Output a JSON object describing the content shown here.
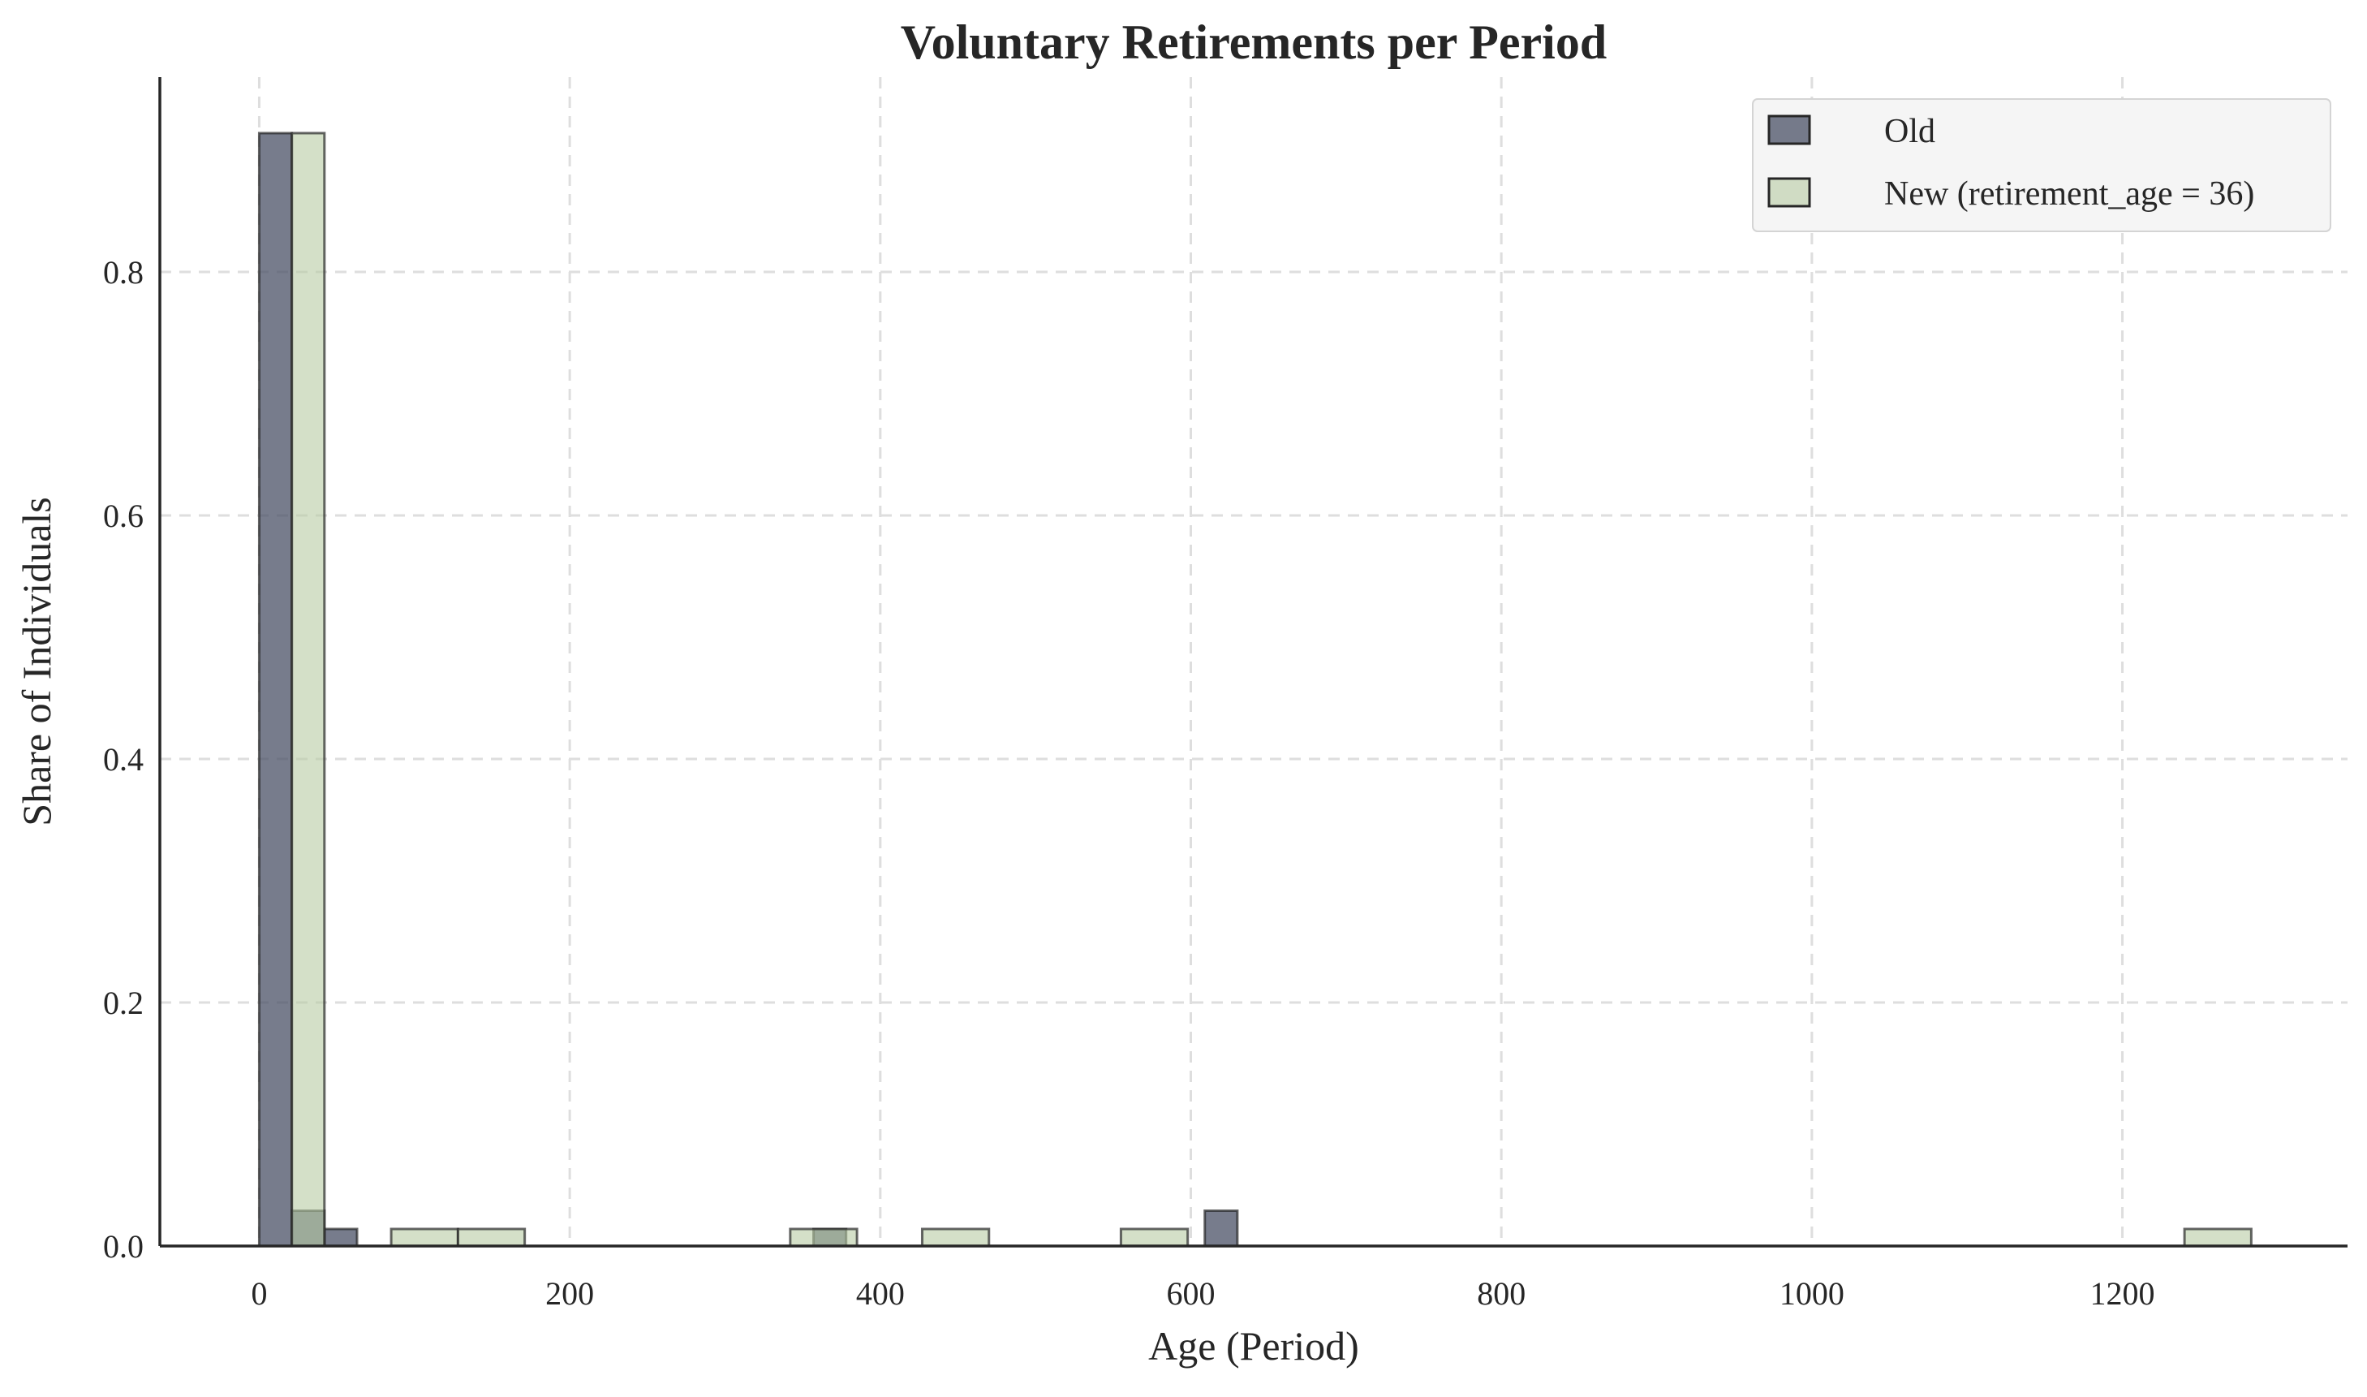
{
  "chart_data": {
    "type": "bar",
    "title": "Voluntary Retirements per Period",
    "xlabel": "Age (Period)",
    "ylabel": "Share of Individuals",
    "xlim": [
      -64,
      1345
    ],
    "ylim": [
      0,
      0.96
    ],
    "xticks": [
      0,
      200,
      400,
      600,
      800,
      1000,
      1200
    ],
    "xtick_labels": [
      "0",
      "200",
      "400",
      "600",
      "800",
      "1000",
      "1200"
    ],
    "yticks": [
      0.0,
      0.2,
      0.4,
      0.6,
      0.8
    ],
    "ytick_labels": [
      "0.0",
      "0.2",
      "0.4",
      "0.6",
      "0.8"
    ],
    "grid": true,
    "legend_position": "top-right",
    "series": [
      {
        "name": "Old",
        "color": "#4a5066",
        "opacity": 0.75,
        "bins": [
          {
            "x0": 0,
            "x1": 21,
            "value": 0.914
          },
          {
            "x0": 21,
            "x1": 42,
            "value": 0.029
          },
          {
            "x0": 42,
            "x1": 63,
            "value": 0.014
          },
          {
            "x0": 357,
            "x1": 378,
            "value": 0.014
          },
          {
            "x0": 609,
            "x1": 630,
            "value": 0.029
          }
        ]
      },
      {
        "name": "New (retirement_age = 36)",
        "color": "#b8cca4",
        "opacity": 0.6,
        "bins": [
          {
            "x0": 21,
            "x1": 42,
            "value": 0.914
          },
          {
            "x0": 85,
            "x1": 128,
            "value": 0.014
          },
          {
            "x0": 128,
            "x1": 171,
            "value": 0.014
          },
          {
            "x0": 342,
            "x1": 385,
            "value": 0.014
          },
          {
            "x0": 427,
            "x1": 470,
            "value": 0.014
          },
          {
            "x0": 555,
            "x1": 598,
            "value": 0.014
          },
          {
            "x0": 1240,
            "x1": 1283,
            "value": 0.014
          }
        ]
      }
    ]
  }
}
